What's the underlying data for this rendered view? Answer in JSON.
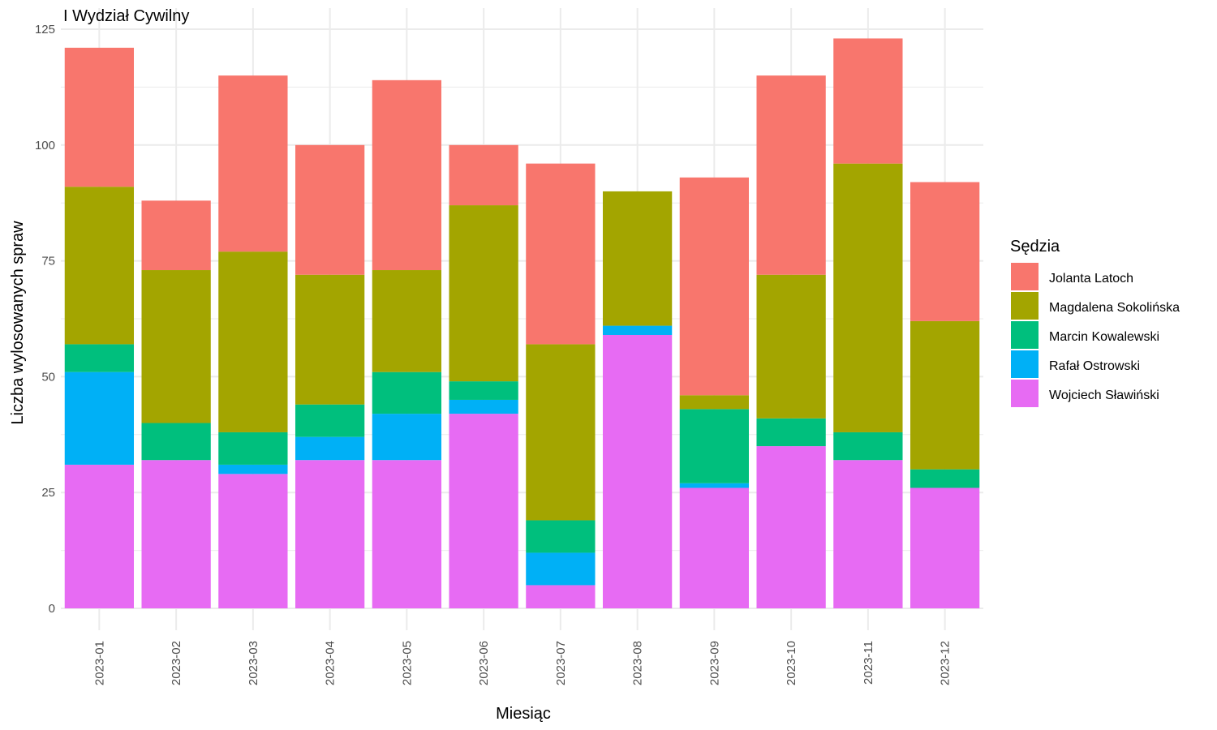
{
  "chart_data": {
    "type": "bar",
    "stacked": true,
    "title": "I Wydział Cywilny",
    "xlabel": "Miesiąc",
    "ylabel": "Liczba wylosowanych spraw",
    "ylim": [
      0,
      125
    ],
    "yticks": [
      0,
      25,
      50,
      75,
      100,
      125
    ],
    "grid": true,
    "legend_title": "Sędzia",
    "legend_position": "right",
    "categories": [
      "2023-01",
      "2023-02",
      "2023-03",
      "2023-04",
      "2023-05",
      "2023-06",
      "2023-07",
      "2023-08",
      "2023-09",
      "2023-10",
      "2023-11",
      "2023-12"
    ],
    "series": [
      {
        "name": "Wojciech Sławiński",
        "color": "#E76BF3",
        "values": [
          31,
          32,
          29,
          32,
          32,
          42,
          5,
          59,
          26,
          35,
          32,
          26
        ]
      },
      {
        "name": "Rafał Ostrowski",
        "color": "#00B0F6",
        "values": [
          20,
          0,
          2,
          5,
          10,
          3,
          7,
          2,
          1,
          0,
          0,
          0
        ]
      },
      {
        "name": "Marcin Kowalewski",
        "color": "#00BF7D",
        "values": [
          6,
          8,
          7,
          7,
          9,
          4,
          7,
          0,
          16,
          6,
          6,
          4
        ]
      },
      {
        "name": "Magdalena Sokolińska",
        "color": "#A3A500",
        "values": [
          34,
          33,
          39,
          28,
          22,
          38,
          38,
          29,
          3,
          31,
          58,
          32
        ]
      },
      {
        "name": "Jolanta Latoch",
        "color": "#F8766D",
        "values": [
          30,
          15,
          38,
          28,
          41,
          13,
          39,
          0,
          47,
          43,
          27,
          30
        ]
      }
    ],
    "legend_order": [
      "Jolanta Latoch",
      "Magdalena Sokolińska",
      "Marcin Kowalewski",
      "Rafał Ostrowski",
      "Wojciech Sławiński"
    ]
  }
}
